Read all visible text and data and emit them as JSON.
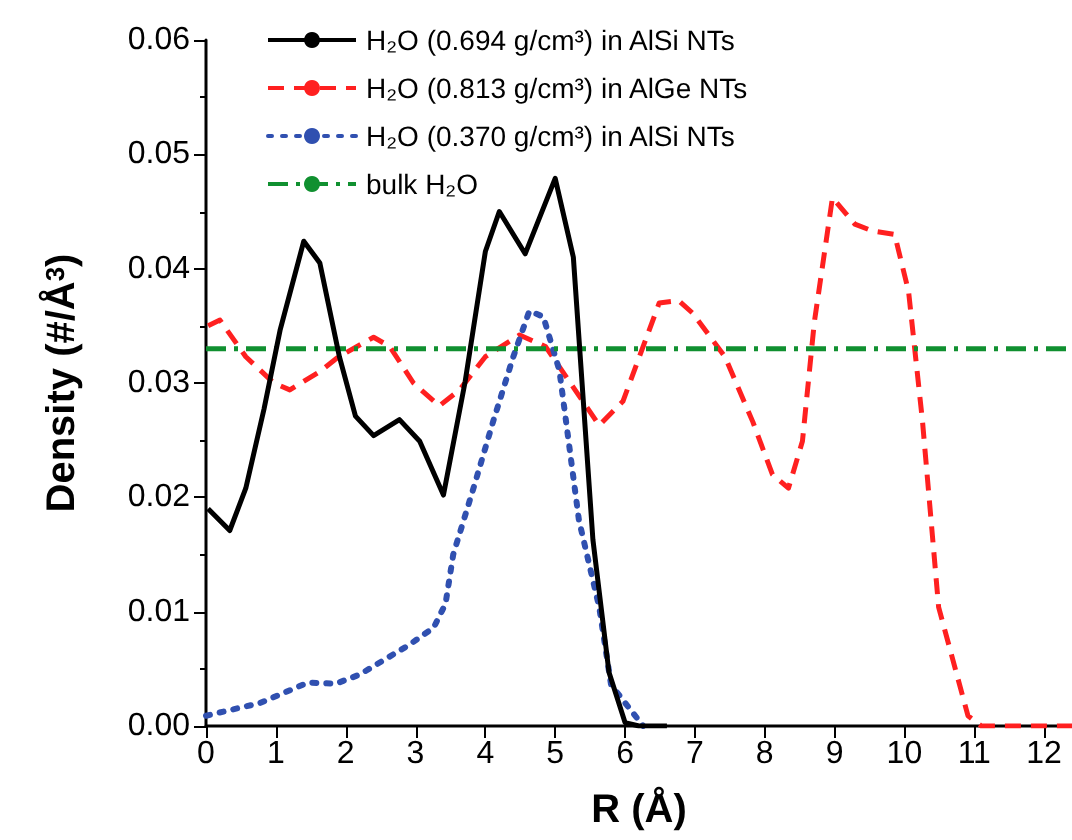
{
  "chart_data": {
    "type": "line",
    "xlabel": "R (Å)",
    "ylabel": "Density (#/Å$^{3}$)",
    "xlim": [
      0,
      12.4
    ],
    "xticks": [
      0,
      1,
      2,
      3,
      4,
      5,
      6,
      7,
      8,
      9,
      10,
      11,
      12
    ],
    "ylim": [
      0,
      0.06
    ],
    "yticks": [
      {
        "value": 0,
        "label": "0.00"
      },
      {
        "value": 0.01,
        "label": "0.01"
      },
      {
        "value": 0.02,
        "label": "0.02"
      },
      {
        "value": 0.03,
        "label": "0.03"
      },
      {
        "value": 0.04,
        "label": "0.04"
      },
      {
        "value": 0.05,
        "label": "0.05"
      },
      {
        "value": 0.06,
        "label": "0.06"
      }
    ],
    "grid": false,
    "legend": "top left",
    "marker": "none",
    "series": [
      {
        "name": "H₂O (0.694 g/cm³) in AlSi NTs",
        "color": "#000000",
        "line_style": "solid",
        "x": [
          0.03,
          0.34,
          0.57,
          0.83,
          1.06,
          1.4,
          1.63,
          1.91,
          2.14,
          2.4,
          2.77,
          3.06,
          3.4,
          3.71,
          4.0,
          4.2,
          4.57,
          5.0,
          5.26,
          5.54,
          5.77,
          6.0,
          6.2,
          6.6
        ],
        "values": [
          0.019,
          0.0171,
          0.0208,
          0.0277,
          0.0346,
          0.0424,
          0.0405,
          0.0323,
          0.0271,
          0.0254,
          0.0268,
          0.0249,
          0.0202,
          0.0301,
          0.0415,
          0.045,
          0.0413,
          0.0479,
          0.041,
          0.0163,
          0.0047,
          0.0003,
          0,
          0
        ]
      },
      {
        "name": "H₂O (0.813 g/cm³) in AlGe NTs",
        "color": "#ff2020",
        "line_style": "dashed",
        "x": [
          0.03,
          0.2,
          0.57,
          0.97,
          1.2,
          1.63,
          1.9,
          2.4,
          2.63,
          2.97,
          3.34,
          3.63,
          4.0,
          4.49,
          4.86,
          5.34,
          5.63,
          5.97,
          6.49,
          6.77,
          6.97,
          7.43,
          7.83,
          8.11,
          8.34,
          8.54,
          8.71,
          8.97,
          9.29,
          9.54,
          9.86,
          10.06,
          10.26,
          10.49,
          10.91,
          11.1,
          12.4
        ],
        "values": [
          0.035,
          0.0355,
          0.0323,
          0.03,
          0.0294,
          0.031,
          0.0323,
          0.034,
          0.0332,
          0.03,
          0.028,
          0.0294,
          0.0323,
          0.0342,
          0.0332,
          0.0289,
          0.0263,
          0.0284,
          0.037,
          0.0372,
          0.0361,
          0.0323,
          0.0266,
          0.022,
          0.0208,
          0.0249,
          0.0353,
          0.0462,
          0.0439,
          0.0433,
          0.043,
          0.038,
          0.0266,
          0.0104,
          0.0009,
          0,
          0
        ]
      },
      {
        "name": "H₂O (0.370 g/cm³) in AlSi NTs",
        "color": "#3050b0",
        "line_style": "dotted",
        "x": [
          0,
          0.77,
          1.46,
          1.86,
          2.2,
          2.91,
          3.26,
          3.43,
          3.54,
          3.83,
          4.11,
          4.4,
          4.63,
          4.83,
          5.06,
          5.34,
          5.63,
          5.8,
          6.26
        ],
        "values": [
          0.0009,
          0.002,
          0.0038,
          0.0037,
          0.0045,
          0.0071,
          0.0086,
          0.0107,
          0.015,
          0.0208,
          0.0266,
          0.0323,
          0.0363,
          0.0358,
          0.0311,
          0.018,
          0.0104,
          0.0036,
          0
        ]
      },
      {
        "name": "bulk H₂O",
        "color": "#109030",
        "line_style": "dashdot",
        "x": [
          0,
          12.4
        ],
        "values": [
          0.033,
          0.033
        ]
      }
    ]
  }
}
